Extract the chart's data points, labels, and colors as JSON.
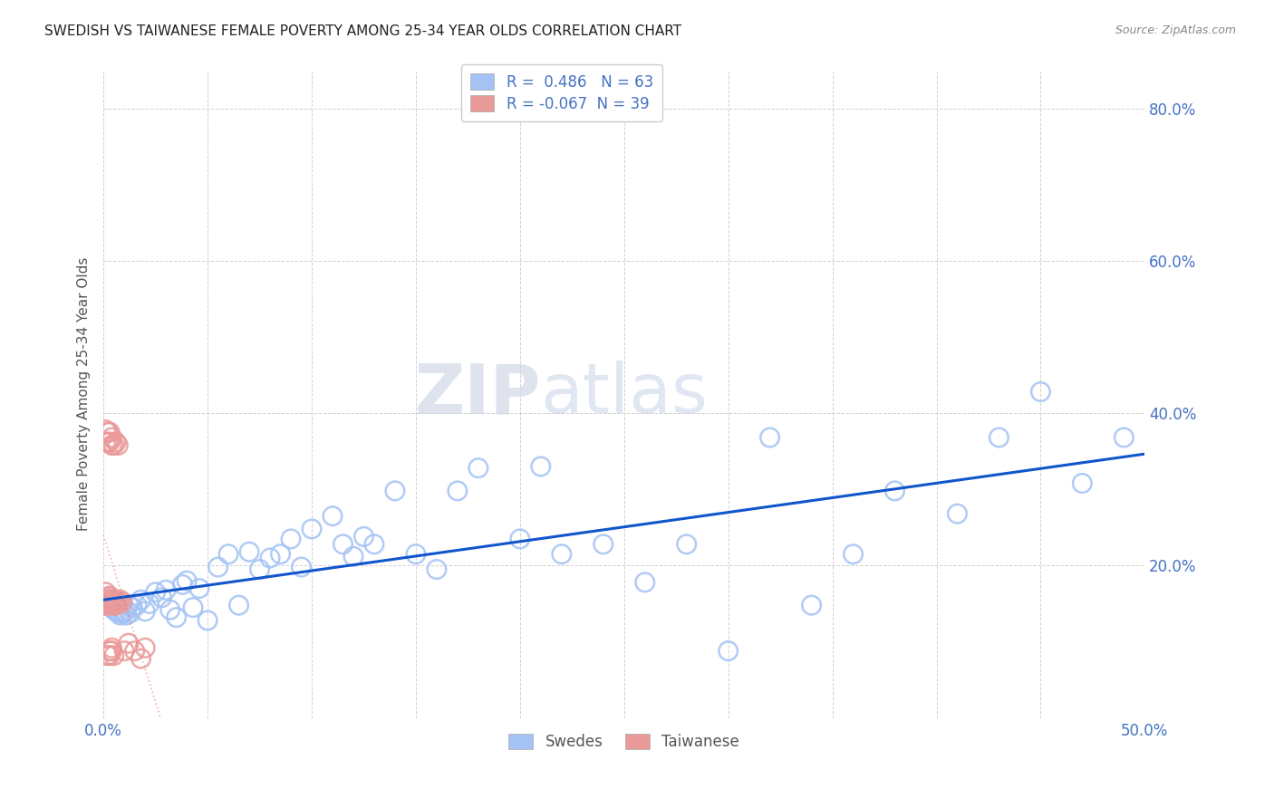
{
  "title": "SWEDISH VS TAIWANESE FEMALE POVERTY AMONG 25-34 YEAR OLDS CORRELATION CHART",
  "source": "Source: ZipAtlas.com",
  "ylabel": "Female Poverty Among 25-34 Year Olds",
  "xlim": [
    0.0,
    0.5
  ],
  "ylim": [
    0.0,
    0.85
  ],
  "xticks": [
    0.0,
    0.05,
    0.1,
    0.15,
    0.2,
    0.25,
    0.3,
    0.35,
    0.4,
    0.45,
    0.5
  ],
  "yticks": [
    0.0,
    0.2,
    0.4,
    0.6,
    0.8
  ],
  "xtick_labels": [
    "0.0%",
    "",
    "",
    "",
    "",
    "",
    "",
    "",
    "",
    "",
    "50.0%"
  ],
  "ytick_labels": [
    "",
    "20.0%",
    "40.0%",
    "60.0%",
    "80.0%"
  ],
  "swedish_color": "#a4c2f4",
  "taiwanese_color": "#ea9999",
  "swedish_r": 0.486,
  "swedish_n": 63,
  "taiwanese_r": -0.067,
  "taiwanese_n": 39,
  "trendline_swedish_color": "#1155cc",
  "trendline_taiwanese_color": "#e06666",
  "watermark_zip": "ZIP",
  "watermark_atlas": "atlas",
  "swedish_x": [
    0.002,
    0.003,
    0.004,
    0.005,
    0.006,
    0.007,
    0.008,
    0.009,
    0.01,
    0.011,
    0.012,
    0.013,
    0.014,
    0.016,
    0.018,
    0.02,
    0.022,
    0.025,
    0.028,
    0.03,
    0.032,
    0.035,
    0.038,
    0.04,
    0.043,
    0.046,
    0.05,
    0.055,
    0.06,
    0.065,
    0.07,
    0.075,
    0.08,
    0.085,
    0.09,
    0.095,
    0.1,
    0.11,
    0.115,
    0.12,
    0.125,
    0.13,
    0.14,
    0.15,
    0.16,
    0.17,
    0.18,
    0.2,
    0.21,
    0.22,
    0.24,
    0.26,
    0.28,
    0.3,
    0.32,
    0.34,
    0.36,
    0.38,
    0.41,
    0.43,
    0.45,
    0.47,
    0.49
  ],
  "swedish_y": [
    0.155,
    0.148,
    0.145,
    0.142,
    0.14,
    0.138,
    0.135,
    0.14,
    0.138,
    0.135,
    0.148,
    0.138,
    0.145,
    0.148,
    0.155,
    0.14,
    0.15,
    0.165,
    0.158,
    0.168,
    0.142,
    0.132,
    0.175,
    0.18,
    0.145,
    0.17,
    0.128,
    0.198,
    0.215,
    0.148,
    0.218,
    0.195,
    0.21,
    0.215,
    0.235,
    0.198,
    0.248,
    0.265,
    0.228,
    0.212,
    0.238,
    0.228,
    0.298,
    0.215,
    0.195,
    0.298,
    0.328,
    0.235,
    0.33,
    0.215,
    0.228,
    0.178,
    0.228,
    0.088,
    0.368,
    0.148,
    0.215,
    0.298,
    0.268,
    0.368,
    0.428,
    0.308,
    0.368
  ],
  "taiwanese_x": [
    0.001,
    0.001,
    0.001,
    0.001,
    0.001,
    0.002,
    0.002,
    0.002,
    0.002,
    0.002,
    0.003,
    0.003,
    0.003,
    0.003,
    0.004,
    0.004,
    0.004,
    0.004,
    0.005,
    0.005,
    0.005,
    0.006,
    0.006,
    0.006,
    0.007,
    0.007,
    0.008,
    0.009,
    0.01,
    0.012,
    0.015,
    0.018,
    0.02,
    0.003,
    0.004,
    0.005,
    0.002,
    0.003,
    0.004
  ],
  "taiwanese_y": [
    0.155,
    0.165,
    0.378,
    0.148,
    0.362,
    0.152,
    0.362,
    0.158,
    0.375,
    0.148,
    0.16,
    0.362,
    0.152,
    0.375,
    0.148,
    0.358,
    0.155,
    0.368,
    0.148,
    0.358,
    0.155,
    0.152,
    0.362,
    0.148,
    0.152,
    0.358,
    0.155,
    0.152,
    0.088,
    0.098,
    0.088,
    0.078,
    0.092,
    0.088,
    0.092,
    0.082,
    0.082,
    0.082,
    0.088
  ]
}
